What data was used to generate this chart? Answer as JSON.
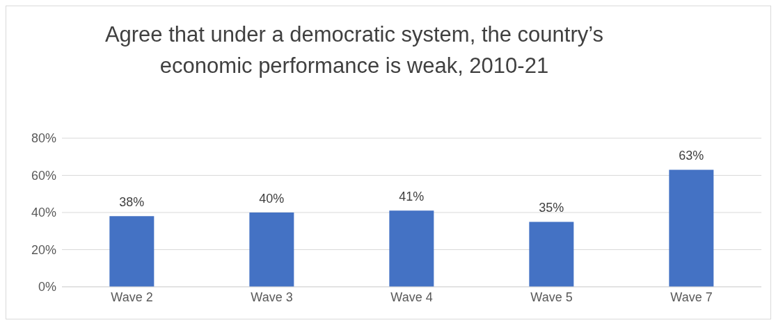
{
  "chart_data": {
    "type": "bar",
    "title": "Agree that under a democratic system, the country’s economic performance is weak, 2010-21",
    "categories": [
      "Wave 2",
      "Wave 3",
      "Wave 4",
      "Wave 5",
      "Wave 7"
    ],
    "values": [
      38,
      40,
      41,
      35,
      63
    ],
    "value_labels": [
      "38%",
      "40%",
      "41%",
      "35%",
      "63%"
    ],
    "color": "#4472c4",
    "ylim": [
      0,
      80
    ],
    "yticks": [
      {
        "value": 0,
        "label": "0%"
      },
      {
        "value": 20,
        "label": "20%"
      },
      {
        "value": 40,
        "label": "40%"
      },
      {
        "value": 60,
        "label": "60%"
      },
      {
        "value": 80,
        "label": "80%"
      }
    ],
    "grid": "y"
  }
}
